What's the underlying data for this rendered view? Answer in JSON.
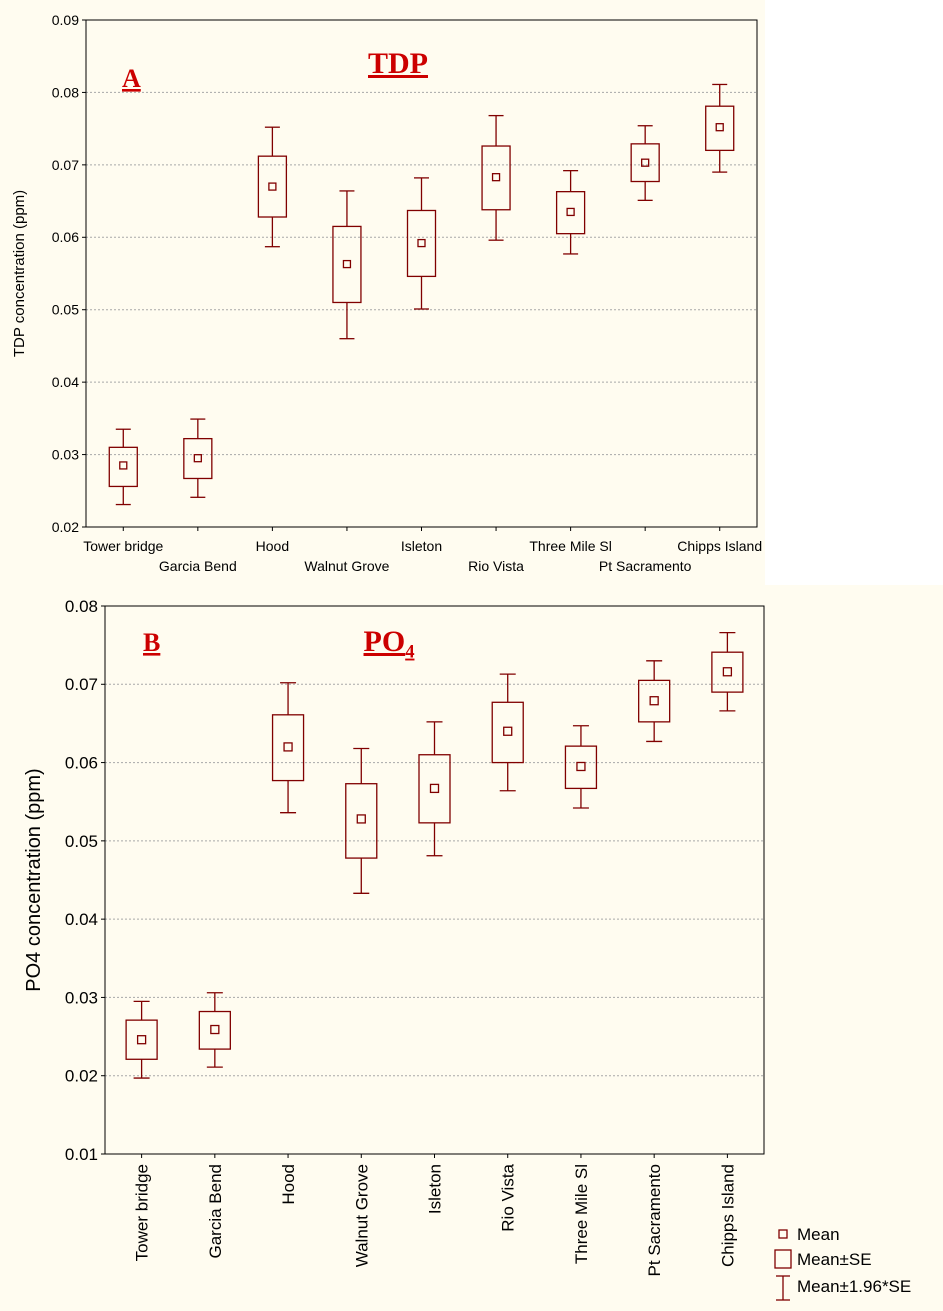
{
  "colors": {
    "series": "#800000",
    "panel_label": "#cc0000",
    "background": "#fffcf0"
  },
  "legend": {
    "mean": "Mean",
    "se": "Mean±SE",
    "ci": "Mean±1.96*SE"
  },
  "chart_data": [
    {
      "type": "box",
      "panel_label": "A",
      "title": "TDP",
      "title_sub": "",
      "ylabel": "TDP concentration (ppm)",
      "xlabel": "",
      "ylim": [
        0.02,
        0.09
      ],
      "yticks": [
        "0.02",
        "0.03",
        "0.04",
        "0.05",
        "0.06",
        "0.07",
        "0.08",
        "0.09"
      ],
      "grid": true,
      "categories": [
        "Tower bridge",
        "Garcia Bend",
        "Hood",
        "Walnut Grove",
        "Isleton",
        "Rio Vista",
        "Three Mile Sl",
        "Pt Sacramento",
        "Chipps Island"
      ],
      "series": [
        {
          "stat": "mean",
          "values": [
            0.0285,
            0.0295,
            0.067,
            0.0563,
            0.0592,
            0.0683,
            0.0635,
            0.0703,
            0.0752
          ]
        },
        {
          "stat": "mean_minus_se",
          "values": [
            0.0256,
            0.0267,
            0.0628,
            0.051,
            0.0546,
            0.0638,
            0.0605,
            0.0677,
            0.072
          ]
        },
        {
          "stat": "mean_plus_se",
          "values": [
            0.031,
            0.0322,
            0.0712,
            0.0615,
            0.0637,
            0.0726,
            0.0663,
            0.0729,
            0.0781
          ]
        },
        {
          "stat": "mean_minus_1.96se",
          "values": [
            0.0231,
            0.0241,
            0.0587,
            0.046,
            0.0501,
            0.0596,
            0.0577,
            0.0651,
            0.069
          ]
        },
        {
          "stat": "mean_plus_1.96se",
          "values": [
            0.0335,
            0.0349,
            0.0752,
            0.0664,
            0.0682,
            0.0768,
            0.0692,
            0.0754,
            0.0811
          ]
        }
      ]
    },
    {
      "type": "box",
      "panel_label": "B",
      "title": "PO",
      "title_sub": "4",
      "ylabel": "PO4 concentration (ppm)",
      "xlabel": "",
      "ylim": [
        0.01,
        0.08
      ],
      "yticks": [
        "0.01",
        "0.02",
        "0.03",
        "0.04",
        "0.05",
        "0.06",
        "0.07",
        "0.08"
      ],
      "grid": true,
      "categories": [
        "Tower bridge",
        "Garcia Bend",
        "Hood",
        "Walnut Grove",
        "Isleton",
        "Rio Vista",
        "Three Mile Sl",
        "Pt Sacramento",
        "Chipps Island"
      ],
      "series": [
        {
          "stat": "mean",
          "values": [
            0.0246,
            0.0259,
            0.062,
            0.0528,
            0.0567,
            0.064,
            0.0595,
            0.0679,
            0.0716
          ]
        },
        {
          "stat": "mean_minus_se",
          "values": [
            0.0221,
            0.0234,
            0.0577,
            0.0478,
            0.0523,
            0.06,
            0.0567,
            0.0652,
            0.069
          ]
        },
        {
          "stat": "mean_plus_se",
          "values": [
            0.0271,
            0.0282,
            0.0661,
            0.0573,
            0.061,
            0.0677,
            0.0621,
            0.0705,
            0.0741
          ]
        },
        {
          "stat": "mean_minus_1.96se",
          "values": [
            0.0197,
            0.0211,
            0.0536,
            0.0433,
            0.0481,
            0.0564,
            0.0542,
            0.0627,
            0.0666
          ]
        },
        {
          "stat": "mean_plus_1.96se",
          "values": [
            0.0295,
            0.0306,
            0.0702,
            0.0618,
            0.0652,
            0.0713,
            0.0647,
            0.073,
            0.0766
          ]
        }
      ]
    }
  ]
}
